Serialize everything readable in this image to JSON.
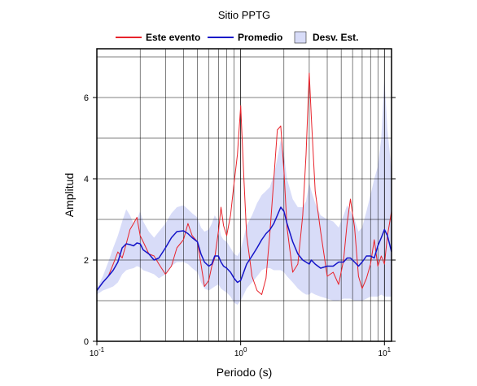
{
  "chart_data": {
    "type": "line",
    "title": "Sitio PPTG",
    "xlabel": "Periodo (s)",
    "ylabel": "Amplitud",
    "xscale": "log",
    "xlim": [
      0.1,
      11.2
    ],
    "ylim": [
      0,
      7.2
    ],
    "x_ticks": [
      {
        "value": 0.1,
        "base": "10",
        "exp": "-1"
      },
      {
        "value": 1,
        "base": "10",
        "exp": "0"
      },
      {
        "value": 10,
        "base": "10",
        "exp": "1"
      }
    ],
    "y_ticks": [
      {
        "value": 0,
        "label": "0"
      },
      {
        "value": 2,
        "label": "2"
      },
      {
        "value": 4,
        "label": "4"
      },
      {
        "value": 6,
        "label": "6"
      }
    ],
    "grid": true,
    "legend_position": "top",
    "legend": [
      {
        "label": "Este evento",
        "color": "#e8232b",
        "kind": "line"
      },
      {
        "label": "Promedio",
        "color": "#1414c8",
        "kind": "line"
      },
      {
        "label": "Desv. Est.",
        "color": "#d8dcf8",
        "kind": "band"
      }
    ],
    "series": [
      {
        "name": "Este evento",
        "color": "#e8232b",
        "x": [
          0.1,
          0.11,
          0.12,
          0.13,
          0.14,
          0.15,
          0.16,
          0.17,
          0.18,
          0.19,
          0.2,
          0.21,
          0.23,
          0.25,
          0.27,
          0.3,
          0.33,
          0.36,
          0.4,
          0.43,
          0.46,
          0.5,
          0.53,
          0.56,
          0.6,
          0.63,
          0.66,
          0.7,
          0.73,
          0.76,
          0.8,
          0.85,
          0.9,
          0.95,
          1.0,
          1.05,
          1.1,
          1.2,
          1.3,
          1.4,
          1.5,
          1.6,
          1.7,
          1.8,
          1.9,
          2.0,
          2.1,
          2.3,
          2.5,
          2.7,
          2.85,
          3.0,
          3.1,
          3.3,
          3.6,
          4.0,
          4.4,
          4.8,
          5.2,
          5.5,
          5.8,
          6.2,
          6.6,
          7.0,
          7.5,
          8.0,
          8.5,
          9.0,
          9.5,
          10.0,
          10.5,
          11.2
        ],
        "values": [
          1.25,
          1.45,
          1.6,
          1.9,
          2.2,
          2.05,
          2.4,
          2.75,
          2.9,
          3.05,
          2.6,
          2.45,
          2.15,
          2.1,
          1.9,
          1.65,
          1.85,
          2.3,
          2.5,
          2.9,
          2.6,
          2.45,
          1.9,
          1.35,
          1.5,
          1.85,
          2.05,
          2.7,
          3.3,
          2.85,
          2.6,
          3.1,
          3.9,
          4.6,
          5.8,
          4.1,
          2.6,
          1.6,
          1.25,
          1.15,
          1.55,
          2.7,
          4.0,
          5.2,
          5.3,
          4.2,
          2.8,
          1.7,
          1.9,
          3.1,
          4.6,
          6.6,
          5.5,
          3.7,
          2.7,
          1.6,
          1.7,
          1.4,
          2.0,
          2.9,
          3.5,
          2.8,
          1.6,
          1.3,
          1.55,
          1.9,
          2.5,
          1.85,
          2.1,
          1.9,
          2.6,
          3.2
        ]
      },
      {
        "name": "Promedio",
        "color": "#1414c8",
        "x": [
          0.1,
          0.11,
          0.12,
          0.13,
          0.14,
          0.15,
          0.16,
          0.17,
          0.18,
          0.19,
          0.2,
          0.21,
          0.23,
          0.25,
          0.27,
          0.3,
          0.33,
          0.36,
          0.4,
          0.43,
          0.46,
          0.5,
          0.53,
          0.56,
          0.6,
          0.63,
          0.66,
          0.7,
          0.73,
          0.76,
          0.8,
          0.85,
          0.9,
          0.95,
          1.0,
          1.05,
          1.1,
          1.2,
          1.3,
          1.4,
          1.5,
          1.6,
          1.7,
          1.8,
          1.9,
          2.0,
          2.1,
          2.3,
          2.5,
          2.7,
          2.85,
          3.0,
          3.1,
          3.3,
          3.6,
          4.0,
          4.4,
          4.8,
          5.2,
          5.5,
          5.8,
          6.2,
          6.6,
          7.0,
          7.5,
          8.0,
          8.5,
          9.0,
          9.5,
          10.0,
          10.5,
          11.2
        ],
        "values": [
          1.25,
          1.45,
          1.6,
          1.75,
          1.95,
          2.3,
          2.4,
          2.38,
          2.35,
          2.42,
          2.4,
          2.25,
          2.15,
          2.0,
          2.05,
          2.3,
          2.55,
          2.7,
          2.72,
          2.65,
          2.55,
          2.45,
          2.15,
          1.95,
          1.85,
          1.9,
          2.1,
          2.1,
          1.95,
          1.85,
          1.8,
          1.7,
          1.55,
          1.45,
          1.5,
          1.7,
          1.9,
          2.1,
          2.3,
          2.5,
          2.65,
          2.75,
          2.9,
          3.1,
          3.3,
          3.2,
          2.9,
          2.45,
          2.15,
          2.0,
          1.95,
          1.9,
          2.0,
          1.9,
          1.8,
          1.85,
          1.85,
          1.95,
          1.95,
          2.05,
          2.05,
          1.95,
          1.85,
          1.95,
          2.1,
          2.1,
          2.05,
          2.35,
          2.55,
          2.75,
          2.6,
          2.2
        ]
      }
    ],
    "band": {
      "name": "Desv. Est.",
      "color": "#d8dcf8",
      "x": [
        0.1,
        0.11,
        0.12,
        0.13,
        0.14,
        0.15,
        0.16,
        0.17,
        0.18,
        0.19,
        0.2,
        0.21,
        0.23,
        0.25,
        0.27,
        0.3,
        0.33,
        0.36,
        0.4,
        0.43,
        0.46,
        0.5,
        0.53,
        0.56,
        0.6,
        0.63,
        0.66,
        0.7,
        0.73,
        0.76,
        0.8,
        0.85,
        0.9,
        0.95,
        1.0,
        1.05,
        1.1,
        1.2,
        1.3,
        1.4,
        1.5,
        1.6,
        1.7,
        1.8,
        1.9,
        2.0,
        2.1,
        2.3,
        2.5,
        2.7,
        2.85,
        3.0,
        3.1,
        3.3,
        3.6,
        4.0,
        4.4,
        4.8,
        5.2,
        5.5,
        5.8,
        6.2,
        6.6,
        7.0,
        7.5,
        8.0,
        8.5,
        9.0,
        9.5,
        10.0,
        10.5,
        11.2
      ],
      "upper": [
        1.3,
        1.6,
        1.95,
        2.3,
        2.6,
        2.95,
        3.25,
        3.1,
        2.9,
        3.0,
        3.2,
        2.95,
        2.7,
        2.55,
        2.7,
        2.9,
        3.15,
        3.3,
        3.35,
        3.25,
        3.15,
        3.05,
        2.8,
        2.7,
        2.75,
        2.9,
        3.1,
        2.95,
        2.6,
        2.5,
        2.45,
        2.3,
        2.15,
        2.1,
        2.25,
        2.55,
        2.85,
        3.1,
        3.4,
        3.6,
        3.7,
        3.8,
        4.1,
        4.5,
        4.95,
        4.6,
        4.0,
        3.5,
        3.3,
        3.3,
        3.45,
        3.9,
        3.7,
        3.4,
        3.1,
        3.0,
        2.95,
        2.8,
        3.1,
        3.35,
        3.2,
        3.0,
        2.7,
        2.8,
        3.2,
        3.6,
        4.0,
        4.3,
        5.0,
        6.5,
        5.2,
        4.2
      ],
      "lower": [
        1.15,
        1.25,
        1.3,
        1.35,
        1.45,
        1.65,
        1.75,
        1.78,
        1.8,
        1.85,
        1.82,
        1.75,
        1.7,
        1.65,
        1.55,
        1.65,
        1.85,
        1.95,
        1.95,
        1.9,
        1.8,
        1.7,
        1.45,
        1.3,
        1.25,
        1.3,
        1.35,
        1.4,
        1.3,
        1.25,
        1.2,
        1.1,
        0.95,
        0.9,
        1.0,
        1.15,
        1.3,
        1.45,
        1.6,
        1.75,
        1.8,
        1.8,
        1.75,
        1.75,
        1.75,
        1.7,
        1.6,
        1.45,
        1.3,
        1.2,
        1.15,
        1.15,
        1.2,
        1.15,
        1.1,
        1.05,
        1.0,
        1.0,
        1.05,
        1.05,
        1.05,
        1.0,
        1.0,
        1.0,
        1.05,
        1.1,
        1.1,
        1.1,
        1.15,
        1.1,
        1.1,
        1.1
      ]
    }
  }
}
